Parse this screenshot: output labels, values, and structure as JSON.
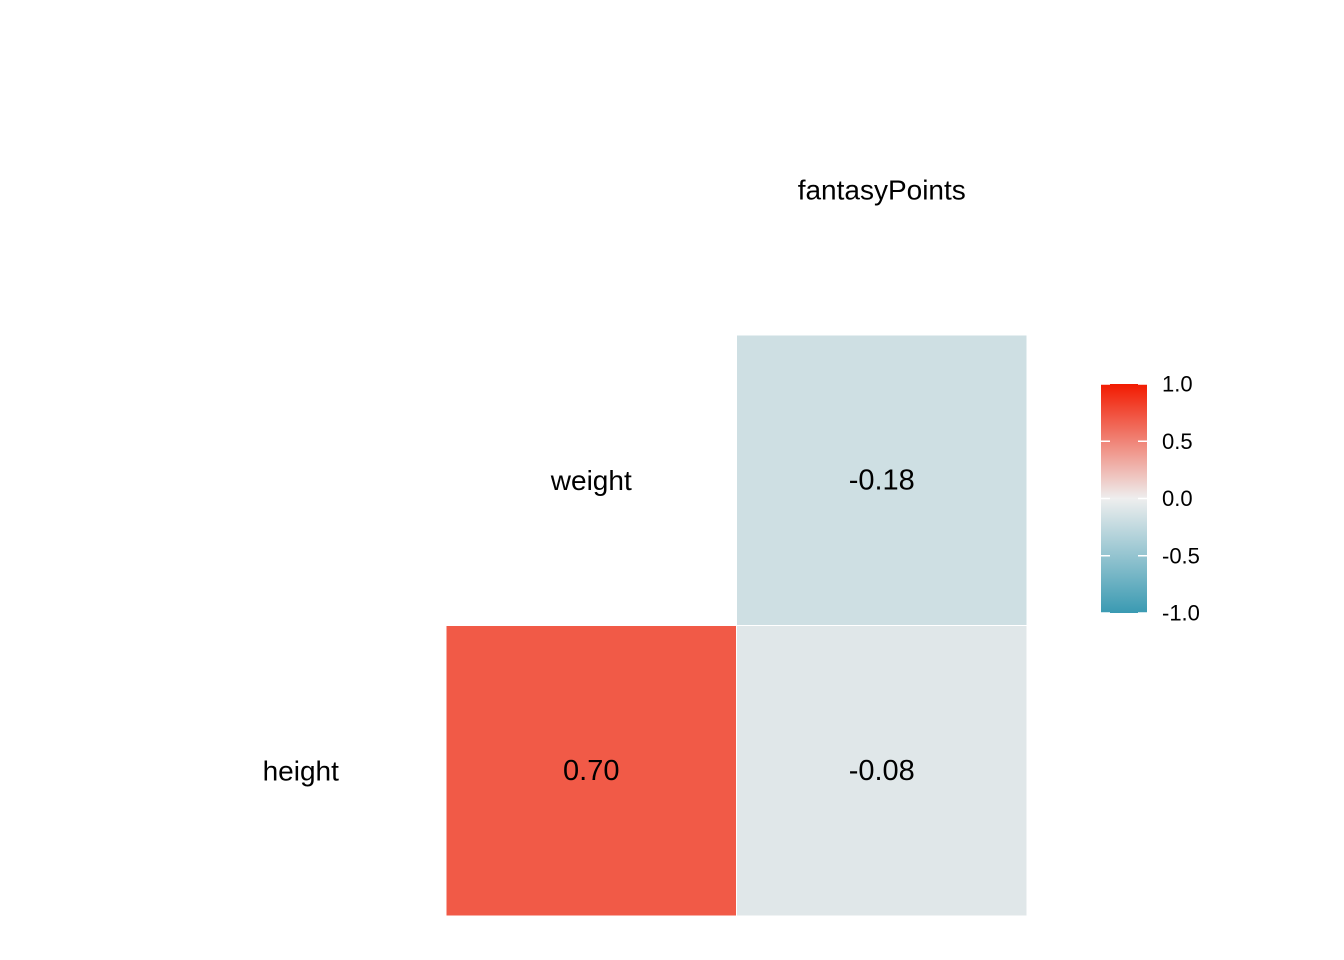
{
  "chart_data": {
    "type": "heatmap",
    "title": "",
    "variables": [
      "height",
      "weight",
      "fantasyPoints"
    ],
    "cells": [
      {
        "row": "height",
        "col": "weight",
        "value": 0.7,
        "label": "0.70"
      },
      {
        "row": "height",
        "col": "fantasyPoints",
        "value": -0.08,
        "label": "-0.08"
      },
      {
        "row": "weight",
        "col": "fantasyPoints",
        "value": -0.18,
        "label": "-0.18"
      }
    ],
    "color_scale": {
      "low": "#3A9AB2",
      "mid": "#EEEEEE",
      "high": "#F21A00",
      "limits": [
        -1,
        1
      ]
    },
    "legend": {
      "position": "right",
      "ticks": [
        {
          "value": 1.0,
          "label": "1.0"
        },
        {
          "value": 0.5,
          "label": "0.5"
        },
        {
          "value": 0.0,
          "label": "0.0"
        },
        {
          "value": -0.5,
          "label": "-0.5"
        },
        {
          "value": -1.0,
          "label": "-1.0"
        }
      ]
    }
  }
}
